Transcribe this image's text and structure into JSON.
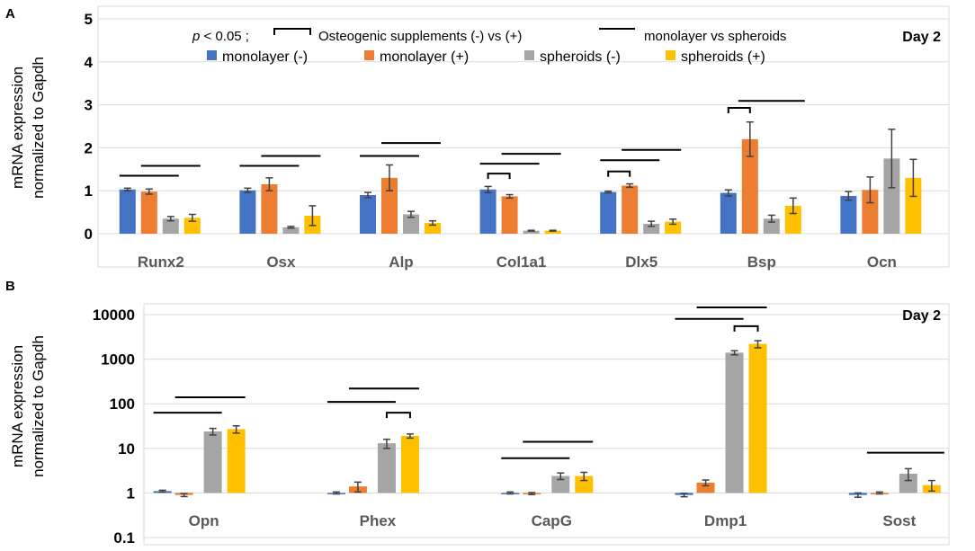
{
  "figure": {
    "colors": {
      "monolayer_minus": "#4472C4",
      "monolayer_plus": "#ED7D31",
      "spheroids_minus": "#A5A5A5",
      "spheroids_plus": "#FFC000",
      "axis_text": "#595959",
      "grid": "#D9D9D9",
      "error": "#404040"
    }
  },
  "chart_data": [
    {
      "panel": "A",
      "type": "bar",
      "scale": "linear",
      "panel_label": "A",
      "day_label": "Day 2",
      "ylabel_line1": "mRNA expression",
      "ylabel_line2": "normalized to Gapdh",
      "ylim": [
        0,
        5
      ],
      "yticks": [
        "0",
        "1",
        "2",
        "3",
        "4",
        "5"
      ],
      "grid": true,
      "legend_position": "top-center",
      "legend": {
        "p_label": "p",
        "p_text": " < 0.05 ;",
        "bracket_text": "Osteogenic supplements (-) vs (+)",
        "line_text": "monolayer vs spheroids",
        "series_names": [
          "monolayer (-)",
          "monolayer (+)",
          "spheroids (-)",
          "spheroids (+)"
        ]
      },
      "categories": [
        "Runx2",
        "Osx",
        "Alp",
        "Col1a1",
        "Dlx5",
        "Bsp",
        "Ocn"
      ],
      "series": [
        {
          "name": "monolayer (-)",
          "values": [
            1.03,
            1.01,
            0.9,
            1.03,
            0.97,
            0.95,
            0.88
          ],
          "errors": [
            0.03,
            0.05,
            0.06,
            0.07,
            0.02,
            0.07,
            0.1
          ]
        },
        {
          "name": "monolayer (+)",
          "values": [
            0.98,
            1.15,
            1.3,
            0.87,
            1.12,
            2.2,
            1.02
          ],
          "errors": [
            0.06,
            0.15,
            0.3,
            0.04,
            0.04,
            0.4,
            0.3
          ]
        },
        {
          "name": "spheroids (-)",
          "values": [
            0.35,
            0.15,
            0.45,
            0.07,
            0.23,
            0.35,
            1.75
          ],
          "errors": [
            0.05,
            0.02,
            0.07,
            0.01,
            0.06,
            0.08,
            0.68
          ]
        },
        {
          "name": "spheroids (+)",
          "values": [
            0.37,
            0.42,
            0.25,
            0.07,
            0.28,
            0.65,
            1.3
          ],
          "errors": [
            0.08,
            0.23,
            0.05,
            0.01,
            0.06,
            0.18,
            0.43
          ]
        }
      ],
      "significance": [
        {
          "category": "Runx2",
          "lines": [
            1.35,
            1.58
          ],
          "brackets": []
        },
        {
          "category": "Osx",
          "lines": [
            1.58,
            1.81
          ],
          "brackets": []
        },
        {
          "category": "Alp",
          "lines": [
            1.81,
            2.11
          ],
          "brackets": []
        },
        {
          "category": "Col1a1",
          "lines": [
            1.63,
            1.86
          ],
          "brackets": [
            1.4
          ]
        },
        {
          "category": "Dlx5",
          "lines": [
            1.71,
            1.95
          ],
          "brackets": [
            1.45
          ]
        },
        {
          "category": "Bsp",
          "lines": [
            3.09
          ],
          "brackets": [
            2.93
          ]
        },
        {
          "category": "Ocn",
          "lines": [],
          "brackets": []
        }
      ]
    },
    {
      "panel": "B",
      "type": "bar",
      "scale": "log",
      "panel_label": "B",
      "day_label": "Day 2",
      "ylabel_line1": "mRNA expression",
      "ylabel_line2": "normalized to Gapdh",
      "ylim": [
        0.1,
        10000
      ],
      "yticks": [
        "0.1",
        "1",
        "10",
        "100",
        "1000",
        "10000"
      ],
      "grid": true,
      "categories": [
        "Opn",
        "Phex",
        "CapG",
        "Dmp1",
        "Sost"
      ],
      "series": [
        {
          "name": "monolayer (-)",
          "values": [
            1.1,
            1.0,
            1.0,
            0.9,
            0.9
          ],
          "errors": [
            0.05,
            0.05,
            0.05,
            0.08,
            0.1
          ]
        },
        {
          "name": "monolayer (+)",
          "values": [
            0.9,
            1.4,
            0.97,
            1.7,
            1.0
          ],
          "errors": [
            0.07,
            0.35,
            0.05,
            0.25,
            0.05
          ]
        },
        {
          "name": "spheroids (-)",
          "values": [
            24,
            13,
            2.4,
            1400,
            2.7
          ],
          "errors": [
            4,
            3,
            0.4,
            150,
            0.8
          ]
        },
        {
          "name": "spheroids (+)",
          "values": [
            27,
            19,
            2.4,
            2200,
            1.5
          ],
          "errors": [
            5,
            2,
            0.5,
            400,
            0.4
          ]
        }
      ],
      "significance": [
        {
          "category": "Opn",
          "lines": [
            63,
            140
          ],
          "brackets": []
        },
        {
          "category": "Phex",
          "lines": [
            110,
            220
          ],
          "brackets": [
            63
          ]
        },
        {
          "category": "CapG",
          "lines": [
            6,
            14
          ],
          "brackets": []
        },
        {
          "category": "Dmp1",
          "lines": [
            8000,
            14500
          ],
          "brackets": [
            5500
          ]
        },
        {
          "category": "Sost",
          "lines": [
            8
          ],
          "brackets": []
        }
      ]
    }
  ]
}
